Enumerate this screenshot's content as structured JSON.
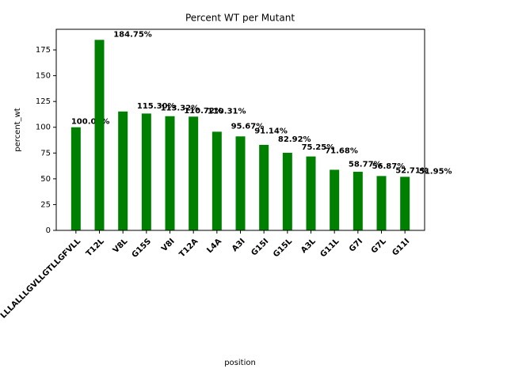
{
  "chart_data": {
    "type": "bar",
    "title": "Percent WT per Mutant",
    "x_label": "position",
    "y_label": "percent_wt",
    "categories": [
      "LLLALLLGVLLGTLLGFVLL",
      "T12L",
      "V8L",
      "G15S",
      "V8I",
      "T12A",
      "L4A",
      "A3I",
      "G15I",
      "G15L",
      "A3L",
      "G11L",
      "G7I",
      "G7L",
      "G11I"
    ],
    "values": [
      100,
      184.75,
      115.3,
      113.32,
      110.72,
      110.31,
      95.67,
      91.14,
      82.92,
      75.25,
      71.68,
      58.77,
      56.87,
      52.71,
      51.95
    ],
    "value_labels": [
      "100.00%",
      "184.75%",
      "115.30%",
      "113.32%",
      "110.72%",
      "110.31%",
      "95.67%",
      "91.14%",
      "82.92%",
      "75.25%",
      "71.68%",
      "58.77%",
      "56.87%",
      "52.71%",
      "51.95%"
    ],
    "color": "#008000",
    "ylim": [
      0,
      195
    ],
    "yticks": [
      0,
      25,
      50,
      75,
      100,
      125,
      150,
      175
    ],
    "grid": false
  }
}
